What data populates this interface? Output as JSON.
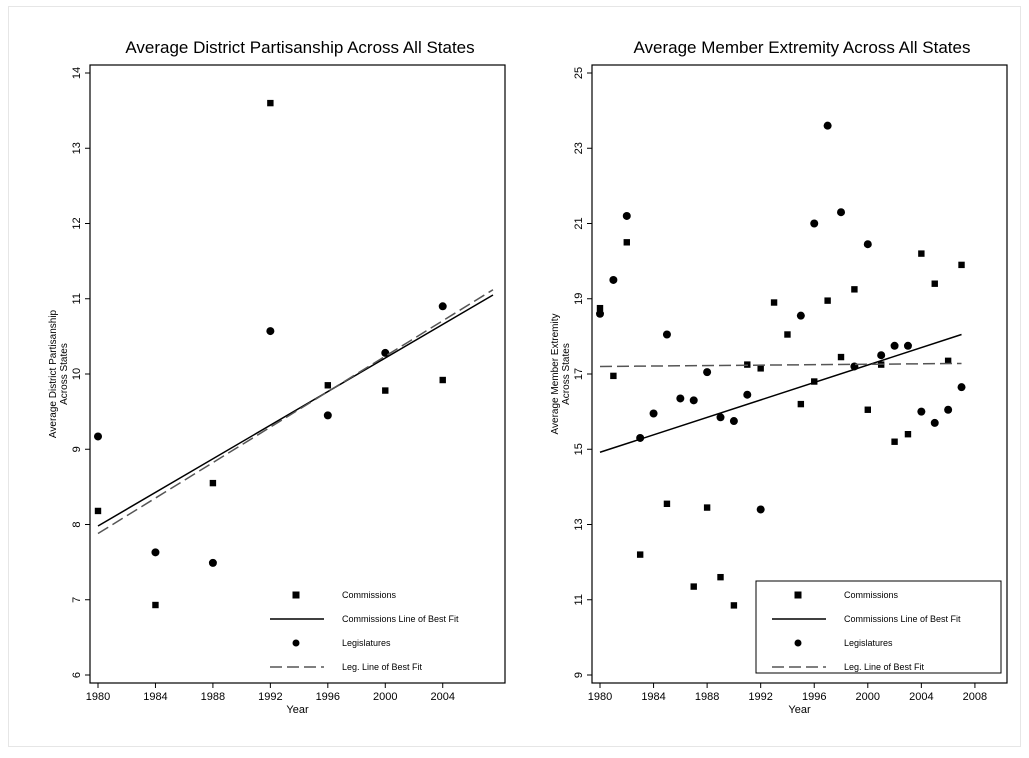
{
  "chart_data": [
    {
      "type": "scatter",
      "title": "Average District Partisanship  Across All States",
      "xlabel": "Year",
      "ylabel": "Average  District  Partisanship",
      "ylabel_line2": "Across  States",
      "xlim": [
        1980,
        2007.5
      ],
      "ylim": [
        6,
        14
      ],
      "xticks": [
        "1980",
        "1984",
        "1988",
        "1992",
        "1996",
        "2000",
        "2004"
      ],
      "yticks": [
        "6",
        "7",
        "8",
        "9",
        "10",
        "11",
        "12",
        "13",
        "14"
      ],
      "legend_placement": "bottom-right",
      "legend_box": false,
      "legend": [
        "Commissions",
        "Commissions  Line of Best  Fit",
        "Legislatures",
        "Leg.  Line of Best  Fit"
      ],
      "series": [
        {
          "name": "Commissions",
          "marker": "square",
          "points": [
            [
              1980,
              8.18
            ],
            [
              1984,
              6.93
            ],
            [
              1988,
              8.55
            ],
            [
              1992,
              13.6
            ],
            [
              1996,
              9.85
            ],
            [
              2000,
              9.78
            ],
            [
              2004,
              9.92
            ]
          ]
        },
        {
          "name": "Commissions  Line of Best  Fit",
          "style": "solid",
          "points": [
            [
              1980,
              7.98
            ],
            [
              2007.5,
              11.05
            ]
          ]
        },
        {
          "name": "Legislatures",
          "marker": "circle",
          "points": [
            [
              1980,
              9.17
            ],
            [
              1984,
              7.63
            ],
            [
              1988,
              7.49
            ],
            [
              1992,
              10.57
            ],
            [
              1996,
              9.45
            ],
            [
              2000,
              10.28
            ],
            [
              2004,
              10.9
            ]
          ]
        },
        {
          "name": "Leg.  Line of Best  Fit",
          "style": "dashed",
          "points": [
            [
              1980,
              7.88
            ],
            [
              2007.5,
              11.12
            ]
          ]
        }
      ]
    },
    {
      "type": "scatter",
      "title": "Average Member Extremity Across All States",
      "xlabel": "Year",
      "ylabel": "Average  Member  Extremity",
      "ylabel_line2": "Across  States",
      "xlim": [
        1980,
        2009.5
      ],
      "ylim": [
        9,
        25
      ],
      "xticks": [
        "1980",
        "1984",
        "1988",
        "1992",
        "1996",
        "2000",
        "2004",
        "2008"
      ],
      "yticks": [
        "9",
        "11",
        "13",
        "15",
        "17",
        "19",
        "21",
        "23",
        "25"
      ],
      "legend_placement": "bottom-right",
      "legend_box": true,
      "legend": [
        "Commissions",
        "Commissions  Line of Best  Fit",
        "Legislatures",
        "Leg.  Line of Best  Fit"
      ],
      "series": [
        {
          "name": "Commissions",
          "marker": "square",
          "points": [
            [
              1980,
              18.75
            ],
            [
              1981,
              16.95
            ],
            [
              1982,
              20.5
            ],
            [
              1983,
              12.2
            ],
            [
              1985,
              13.55
            ],
            [
              1987,
              11.35
            ],
            [
              1988,
              13.45
            ],
            [
              1989,
              11.6
            ],
            [
              1990,
              10.85
            ],
            [
              1991,
              17.25
            ],
            [
              1992,
              17.15
            ],
            [
              1993,
              18.9
            ],
            [
              1994,
              18.05
            ],
            [
              1995,
              16.2
            ],
            [
              1996,
              16.8
            ],
            [
              1997,
              18.95
            ],
            [
              1998,
              17.45
            ],
            [
              1999,
              19.25
            ],
            [
              2000,
              16.05
            ],
            [
              2001,
              17.25
            ],
            [
              2002,
              15.2
            ],
            [
              2003,
              15.4
            ],
            [
              2004,
              20.2
            ],
            [
              2005,
              19.4
            ],
            [
              2006,
              17.35
            ],
            [
              2007,
              19.9
            ]
          ]
        },
        {
          "name": "Commissions  Line of Best  Fit",
          "style": "solid",
          "points": [
            [
              1980,
              14.92
            ],
            [
              2007,
              18.05
            ]
          ]
        },
        {
          "name": "Legislatures",
          "marker": "circle",
          "points": [
            [
              1980,
              18.6
            ],
            [
              1981,
              19.5
            ],
            [
              1982,
              21.2
            ],
            [
              1983,
              15.3
            ],
            [
              1984,
              15.95
            ],
            [
              1985,
              18.05
            ],
            [
              1986,
              16.35
            ],
            [
              1987,
              16.3
            ],
            [
              1988,
              17.05
            ],
            [
              1989,
              15.85
            ],
            [
              1990,
              15.75
            ],
            [
              1991,
              16.45
            ],
            [
              1992,
              13.4
            ],
            [
              1995,
              18.55
            ],
            [
              1996,
              21.0
            ],
            [
              1997,
              23.6
            ],
            [
              1998,
              21.3
            ],
            [
              1999,
              17.2
            ],
            [
              2000,
              20.45
            ],
            [
              2001,
              17.5
            ],
            [
              2002,
              17.75
            ],
            [
              2003,
              17.75
            ],
            [
              2004,
              16.0
            ],
            [
              2005,
              15.7
            ],
            [
              2006,
              16.05
            ],
            [
              2007,
              16.65
            ]
          ]
        },
        {
          "name": "Leg.  Line of Best  Fit",
          "style": "dashed",
          "points": [
            [
              1980,
              17.2
            ],
            [
              2007,
              17.28
            ]
          ]
        }
      ]
    }
  ]
}
